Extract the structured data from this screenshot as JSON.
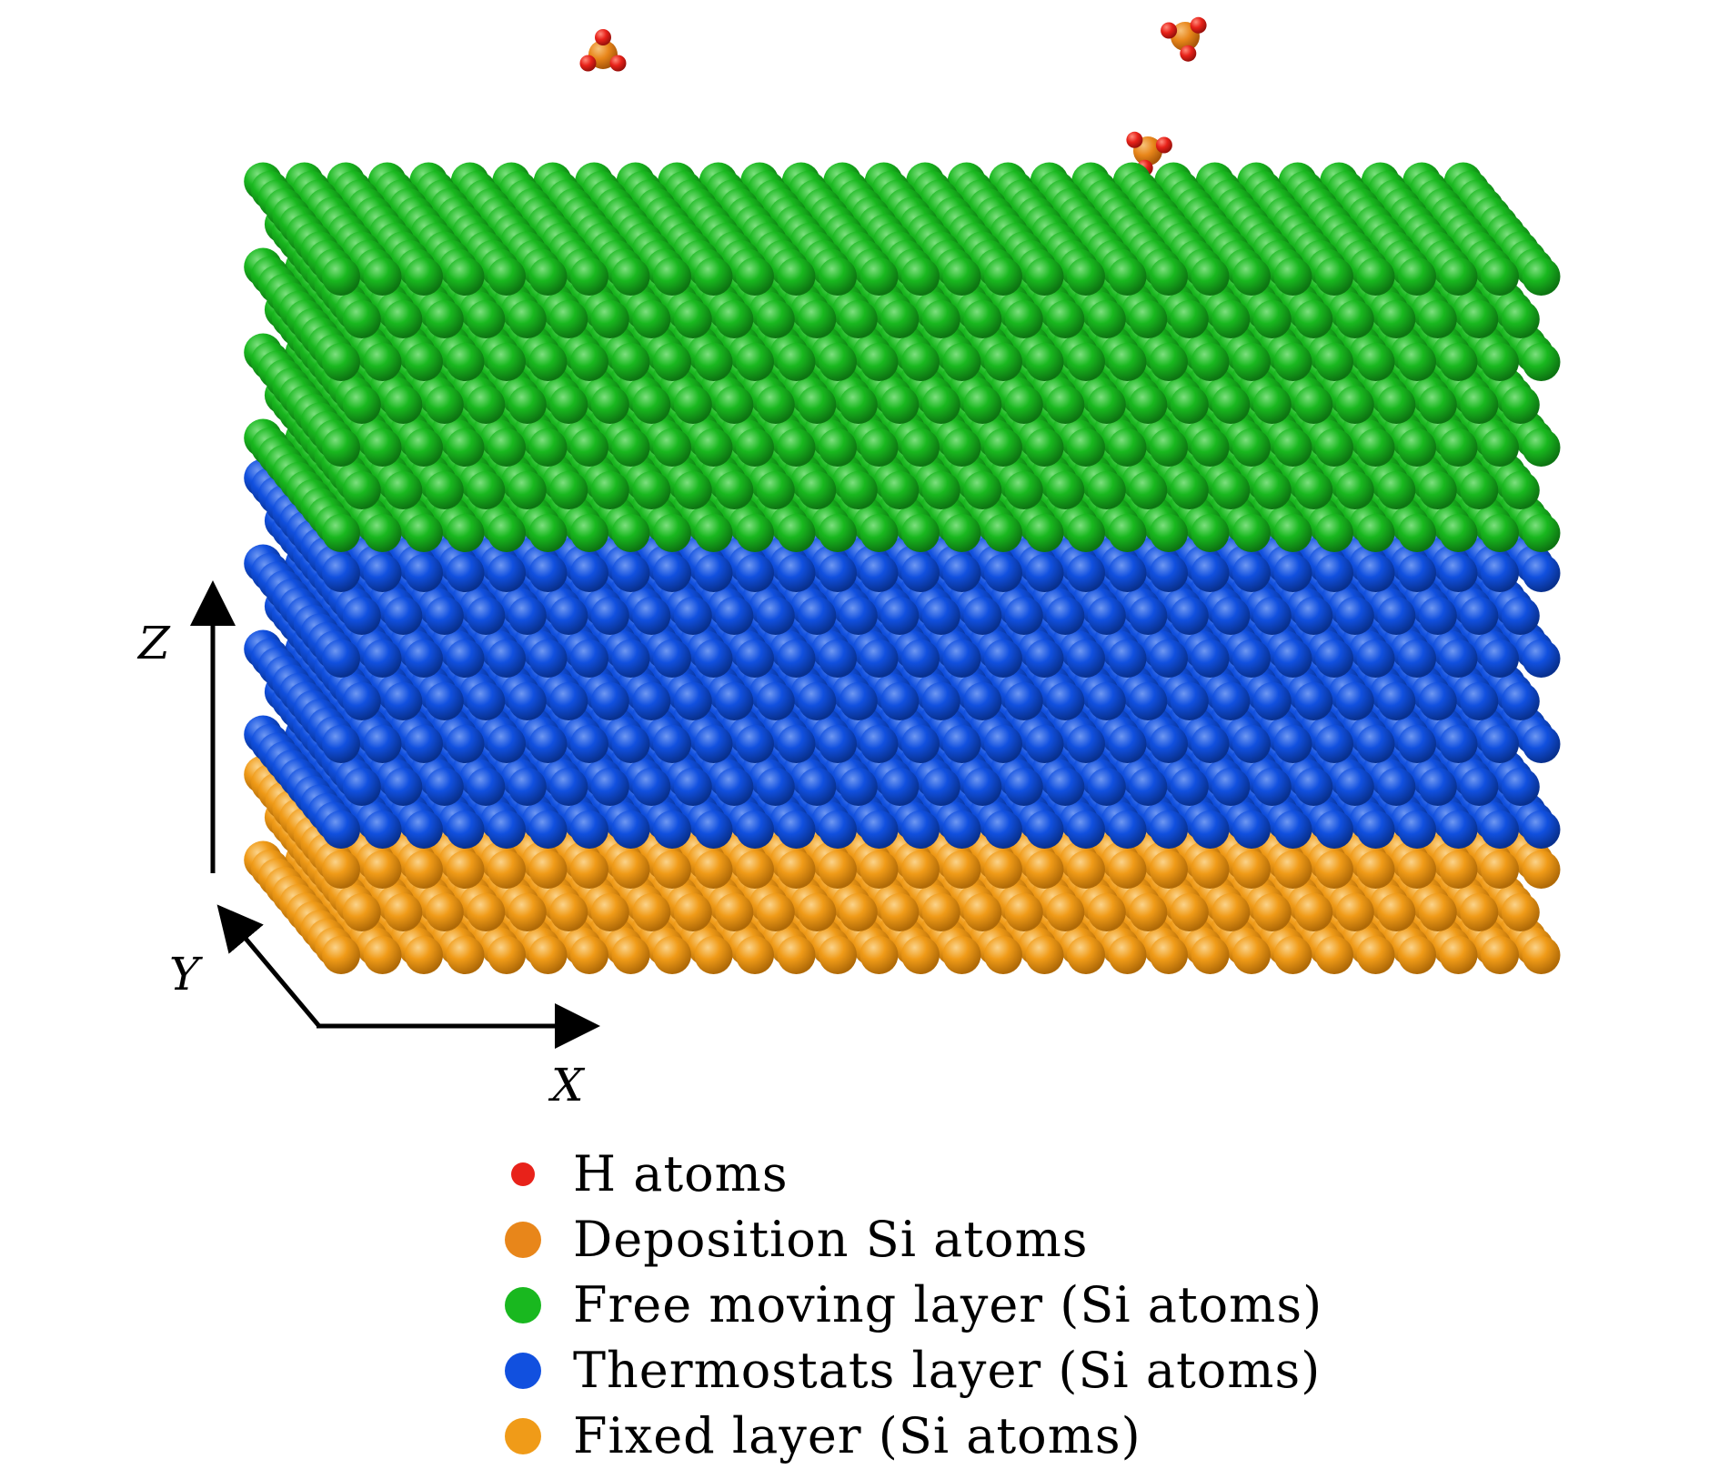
{
  "axes": {
    "z_label": "Z",
    "y_label": "Y",
    "x_label": "X"
  },
  "colors": {
    "h_atom": "#e8221a",
    "deposition_si": "#e8861a",
    "free_layer": "#19b81f",
    "thermostat_layer": "#1150df",
    "fixed_layer": "#f09b18"
  },
  "legend": [
    {
      "label": "H atoms",
      "color": "#e8221a",
      "size": "small"
    },
    {
      "label": "Deposition Si atoms",
      "color": "#e8861a",
      "size": "large"
    },
    {
      "label": "Free moving layer (Si atoms)",
      "color": "#19b81f",
      "size": "large"
    },
    {
      "label": "Thermostats layer (Si atoms)",
      "color": "#1150df",
      "size": "large"
    },
    {
      "label": "Fixed layer (Si atoms)",
      "color": "#f09b18",
      "size": "large"
    }
  ]
}
